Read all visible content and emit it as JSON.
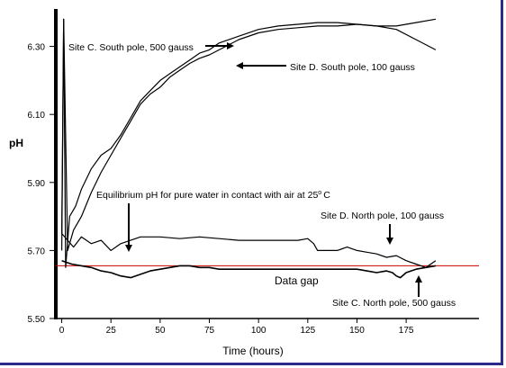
{
  "chart_data": {
    "type": "line",
    "xlabel": "Time (hours)",
    "ylabel": "pH",
    "xlim": [
      -3,
      212
    ],
    "ylim": [
      5.5,
      6.41
    ],
    "x_ticks": [
      0,
      25,
      50,
      75,
      100,
      125,
      150,
      175
    ],
    "x_tick_labels": [
      "0",
      "25",
      "50",
      "75",
      "100",
      "125",
      "150",
      "175"
    ],
    "y_ticks": [
      5.5,
      5.7,
      5.9,
      6.1,
      6.3
    ],
    "y_tick_labels": [
      "5.50",
      "5.70",
      "5.90",
      "6.10",
      "6.30"
    ],
    "grid": false,
    "reference_line": {
      "y": 5.655,
      "color": "#cc0000"
    },
    "series": [
      {
        "name": "Site C. South pole, 500 gauss",
        "color": "#000000",
        "x": [
          0,
          1,
          2,
          4,
          7,
          10,
          15,
          20,
          25,
          30,
          35,
          40,
          45,
          50,
          55,
          60,
          65,
          70,
          75,
          80,
          90,
          100,
          110,
          120,
          130,
          140,
          150,
          160,
          170,
          180,
          190
        ],
        "y": [
          5.75,
          6.38,
          5.65,
          5.8,
          5.83,
          5.88,
          5.94,
          5.98,
          6.0,
          6.04,
          6.09,
          6.14,
          6.17,
          6.2,
          6.22,
          6.24,
          6.26,
          6.28,
          6.29,
          6.31,
          6.33,
          6.35,
          6.36,
          6.365,
          6.37,
          6.37,
          6.365,
          6.36,
          6.36,
          6.37,
          6.38
        ]
      },
      {
        "name": "Site D. South pole, 100 gauss",
        "color": "#000000",
        "x": [
          0,
          1,
          3,
          6,
          10,
          15,
          20,
          25,
          30,
          35,
          40,
          45,
          50,
          55,
          60,
          65,
          70,
          75,
          80,
          90,
          100,
          110,
          120,
          130,
          140,
          150,
          160,
          170,
          180,
          190
        ],
        "y": [
          5.7,
          6.38,
          5.7,
          5.76,
          5.8,
          5.87,
          5.93,
          5.98,
          6.03,
          6.08,
          6.13,
          6.16,
          6.18,
          6.21,
          6.23,
          6.25,
          6.265,
          6.275,
          6.29,
          6.32,
          6.34,
          6.35,
          6.355,
          6.36,
          6.36,
          6.365,
          6.36,
          6.35,
          6.32,
          6.29
        ]
      },
      {
        "name": "Site D. North pole, 100 gauss",
        "color": "#000000",
        "x": [
          0,
          3,
          6,
          10,
          15,
          20,
          25,
          30,
          40,
          50,
          60,
          70,
          80,
          90,
          100,
          110,
          120,
          125,
          128,
          130,
          140,
          145,
          150,
          155,
          160,
          165,
          170,
          175,
          180,
          185,
          190
        ],
        "y": [
          5.75,
          5.73,
          5.71,
          5.74,
          5.72,
          5.73,
          5.7,
          5.72,
          5.74,
          5.74,
          5.735,
          5.74,
          5.735,
          5.73,
          5.73,
          5.73,
          5.73,
          5.735,
          5.72,
          5.7,
          5.7,
          5.71,
          5.7,
          5.695,
          5.69,
          5.68,
          5.685,
          5.67,
          5.66,
          5.65,
          5.67
        ]
      },
      {
        "name": "Site C. North pole, 500 gauss",
        "color": "#000000",
        "x": [
          0,
          5,
          10,
          15,
          20,
          25,
          30,
          35,
          40,
          45,
          50,
          55,
          60,
          65,
          70,
          75,
          80,
          85,
          90,
          150,
          155,
          160,
          165,
          168,
          170,
          172,
          175,
          180,
          185,
          190
        ],
        "y": [
          5.67,
          5.66,
          5.655,
          5.65,
          5.64,
          5.635,
          5.625,
          5.62,
          5.63,
          5.64,
          5.645,
          5.65,
          5.655,
          5.655,
          5.65,
          5.65,
          5.645,
          5.645,
          5.645,
          5.645,
          5.64,
          5.635,
          5.64,
          5.635,
          5.625,
          5.62,
          5.635,
          5.645,
          5.65,
          5.655
        ]
      }
    ],
    "annotations": {
      "site_c_south": "Site C. South pole, 500 gauss",
      "site_d_south": "Site D. South pole, 100 gauss",
      "equilibrium": "Equilibrium pH for pure water in contact with air at 25",
      "equilibrium_degree": "o",
      "equilibrium_unit": "C",
      "site_d_north": "Site D. North pole, 100 gauss",
      "data_gap": "Data gap",
      "site_c_north": "Site C. North pole, 500 gauss"
    }
  }
}
